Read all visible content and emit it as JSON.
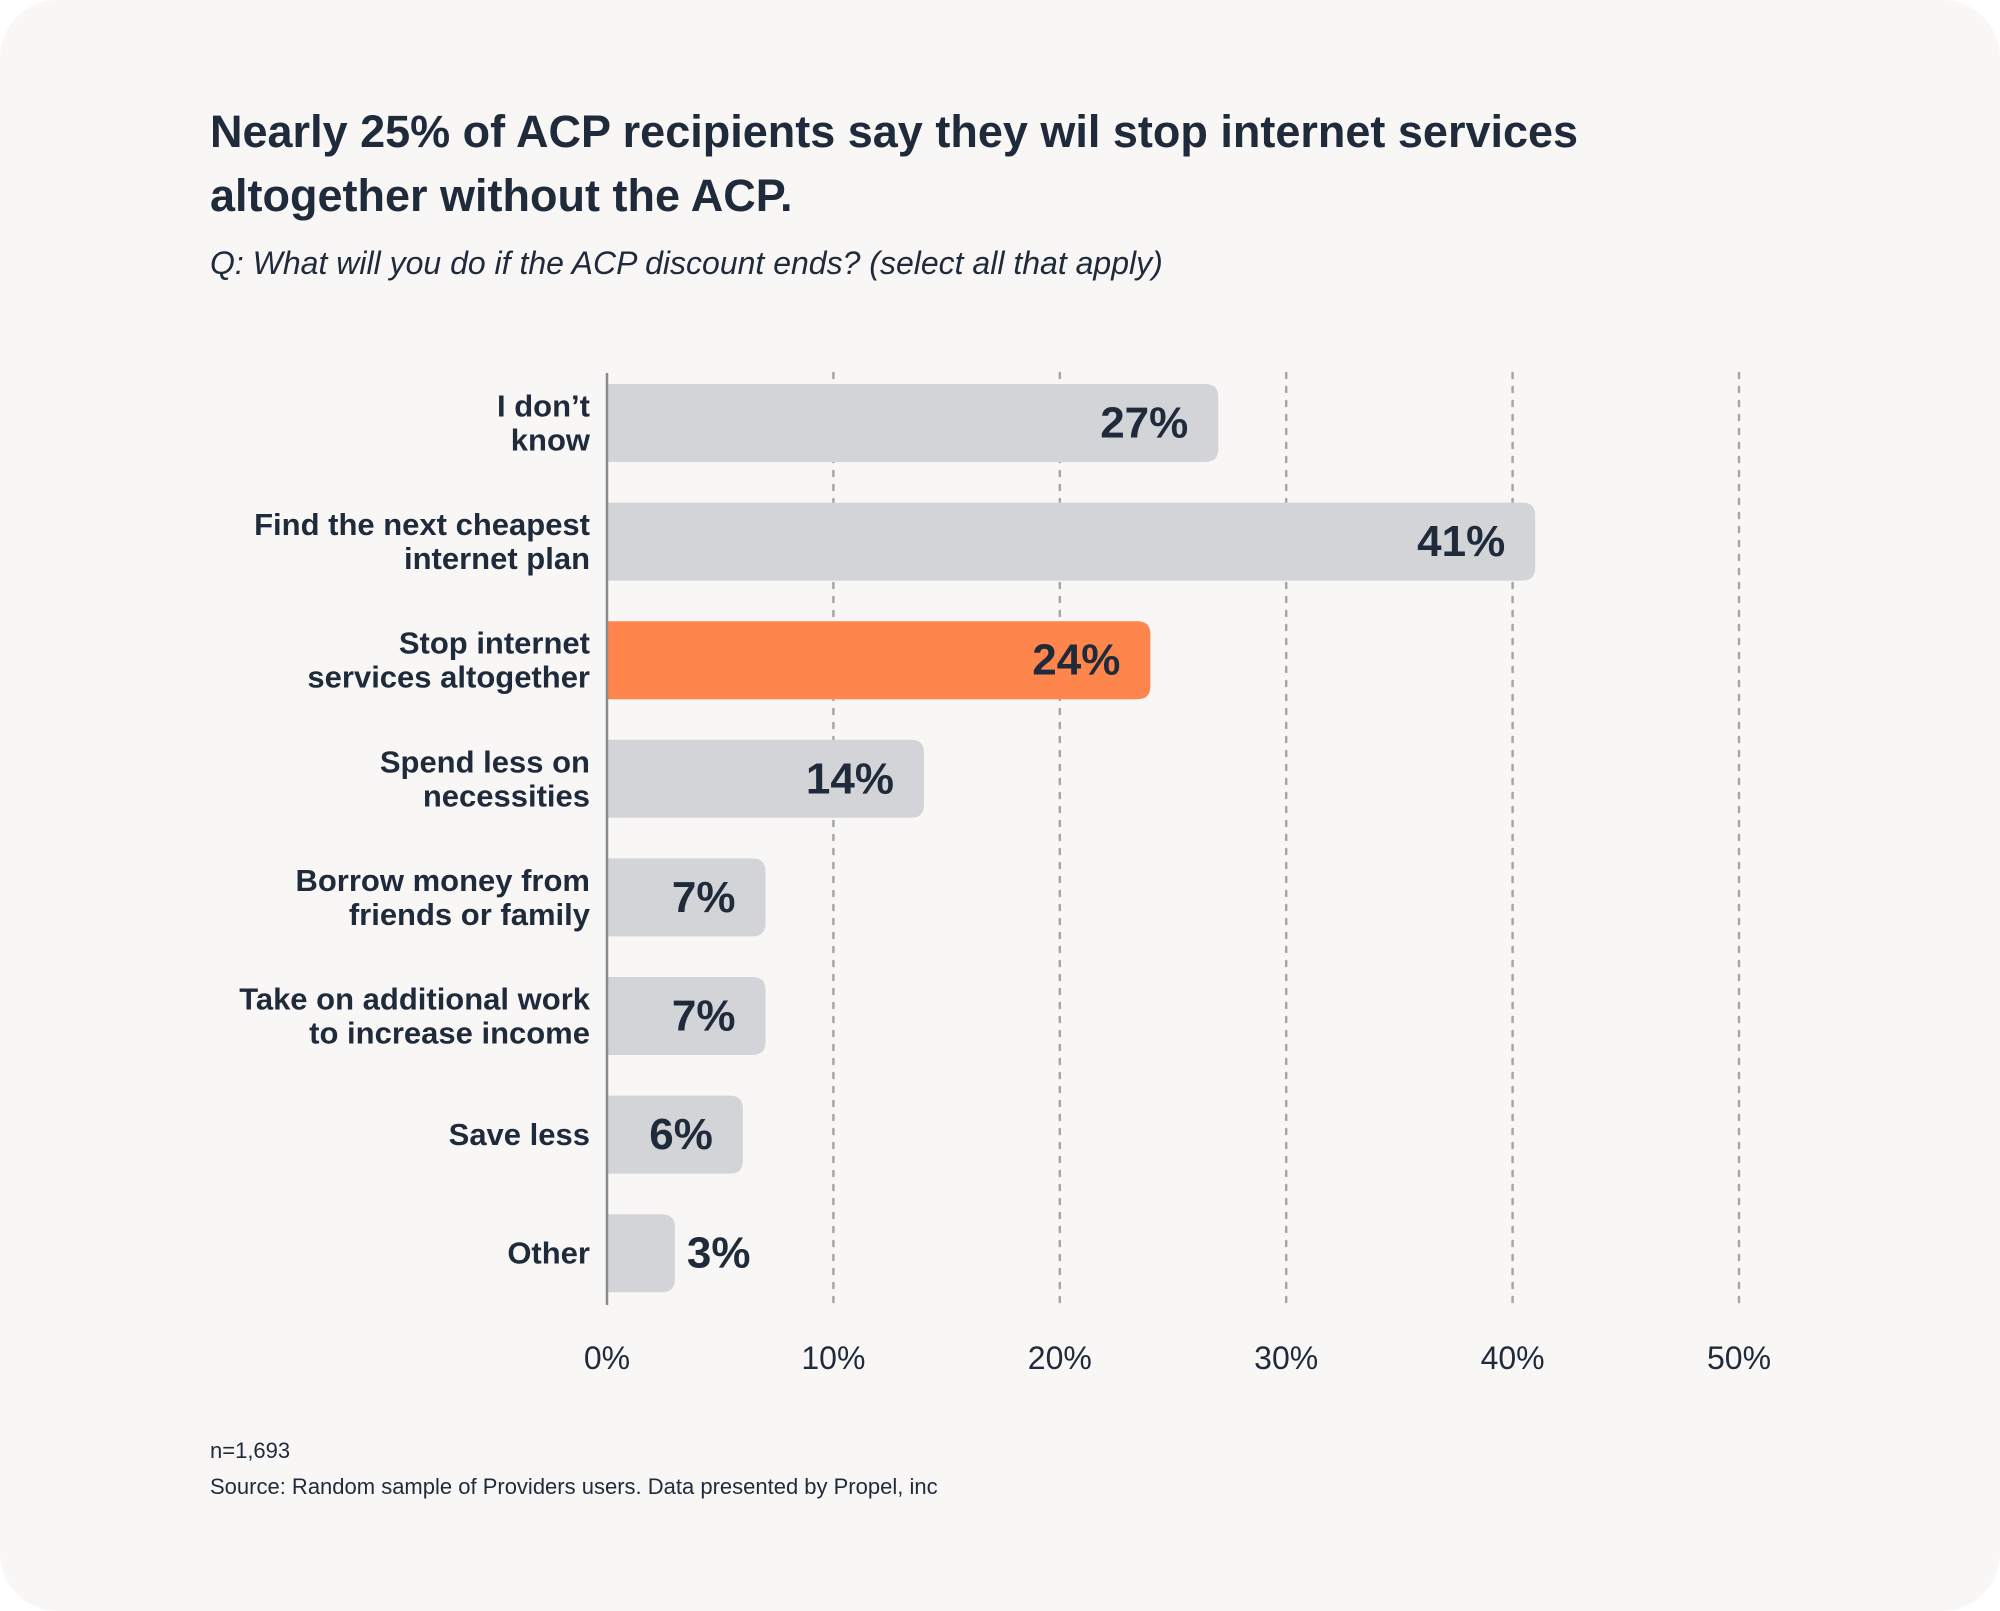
{
  "chart_data": {
    "type": "bar",
    "orientation": "horizontal",
    "title": "Nearly 25% of ACP recipients say they wil stop internet services altogether without the ACP.",
    "subtitle": "Q: What will you do if the ACP discount ends? (select all that apply)",
    "categories": [
      [
        "I don’t",
        "know"
      ],
      [
        "Find the next cheapest",
        "internet plan"
      ],
      [
        "Stop internet",
        "services altogether"
      ],
      [
        "Spend less on",
        "necessities"
      ],
      [
        "Borrow money from",
        "friends or family"
      ],
      [
        "Take on additional work",
        "to increase income"
      ],
      [
        "Save less"
      ],
      [
        "Other"
      ]
    ],
    "values": [
      27,
      41,
      24,
      14,
      7,
      7,
      6,
      3
    ],
    "value_labels": [
      "27%",
      "41%",
      "24%",
      "14%",
      "7%",
      "7%",
      "6%",
      "3%"
    ],
    "highlight_index": 2,
    "xlim": [
      0,
      50
    ],
    "ticks": [
      0,
      10,
      20,
      30,
      40,
      50
    ],
    "tick_labels": [
      "0%",
      "10%",
      "20%",
      "30%",
      "40%",
      "50%"
    ],
    "grid": true,
    "colors": {
      "bar": "#d3d4d7",
      "highlight": "#fe854c",
      "grid": "#a5a6a8",
      "axis": "#8a8b8e",
      "text": "#1f2a3a"
    }
  },
  "footnotes": {
    "n": "n=1,693",
    "source": "Source: Random sample of Providers users. Data presented by Propel, inc"
  }
}
